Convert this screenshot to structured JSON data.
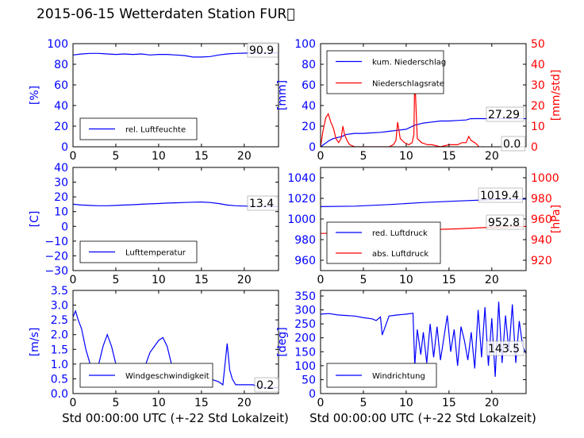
{
  "title": "2015-06-15 Wetterdaten Station FUR\u0000",
  "xlabel": "Std 00:00:00 UTC (+-22 Std Lokalzeit)",
  "colors": {
    "primary": "#0000ff",
    "secondary": "#ff0000",
    "axis": "#000000"
  },
  "chart_data": [
    {
      "type": "line",
      "xlim": [
        0,
        24
      ],
      "ylim": [
        0,
        100
      ],
      "x_ticks": [
        "0",
        "5",
        "10",
        "15",
        "20"
      ],
      "y_ticks": [
        "0",
        "20",
        "40",
        "60",
        "80",
        "100"
      ],
      "ylabel": "[%]",
      "legend_position": "lower-left",
      "series": [
        {
          "name": "rel. Luftfeuchte",
          "color": "#0000ff",
          "x": [
            0,
            1,
            2,
            3,
            4,
            5,
            6,
            7,
            8,
            9,
            10,
            11,
            12,
            13,
            14,
            15,
            16,
            17,
            18,
            19,
            20,
            21,
            22,
            23,
            24
          ],
          "y": [
            89,
            90,
            90.5,
            90.5,
            90,
            89.5,
            90,
            89.5,
            90,
            89,
            89.5,
            89.5,
            89,
            88.5,
            87,
            87,
            87.5,
            89,
            90,
            90.5,
            90.8,
            91,
            90.9,
            91,
            90.9
          ]
        }
      ],
      "annotation": "90.9"
    },
    {
      "type": "line",
      "xlim": [
        0,
        24
      ],
      "ylim": [
        0,
        100
      ],
      "y2lim": [
        0,
        50
      ],
      "x_ticks": [
        "0",
        "5",
        "10",
        "15",
        "20"
      ],
      "y_ticks": [
        "0",
        "20",
        "40",
        "60",
        "80",
        "100"
      ],
      "y2_ticks": [
        "0",
        "10",
        "20",
        "30",
        "40",
        "50"
      ],
      "ylabel": "[mm]",
      "y2label": "[mm/std]",
      "legend_position": "top-left",
      "series": [
        {
          "name": "kum. Niederschlag",
          "color": "#0000ff",
          "axis": "left",
          "x": [
            0,
            0.5,
            1,
            1.5,
            2,
            2.5,
            3,
            4,
            5,
            6,
            7,
            8,
            9,
            10,
            11,
            11.5,
            12,
            13,
            14,
            15,
            16,
            17,
            17.5,
            18,
            19,
            20,
            21,
            22,
            23,
            24
          ],
          "y": [
            0,
            3,
            6,
            8,
            9,
            10,
            12,
            13,
            13,
            13.5,
            14,
            15,
            16,
            17,
            21,
            22,
            23,
            24,
            25,
            25,
            25.5,
            26,
            27.2,
            27.29,
            27.29,
            27.29,
            27.29,
            27.29,
            27.29,
            27.29
          ]
        },
        {
          "name": "Niederschlagsrate",
          "color": "#ff0000",
          "axis": "right",
          "x": [
            0,
            0.3,
            0.6,
            0.9,
            1.2,
            1.5,
            1.8,
            2.1,
            2.4,
            2.6,
            2.8,
            3.1,
            3.4,
            4,
            5,
            6,
            7,
            8,
            8.5,
            8.8,
            9,
            9.3,
            9.8,
            10.3,
            10.7,
            10.9,
            11,
            11.1,
            11.3,
            11.8,
            12.5,
            13,
            14,
            15,
            16,
            16.5,
            17,
            17.3,
            17.6,
            18,
            18.3,
            18.5
          ],
          "y": [
            0,
            8,
            14,
            16,
            12,
            9,
            4,
            2,
            4,
            10,
            6,
            3,
            1,
            0,
            0,
            0,
            0,
            0,
            1,
            3,
            12,
            4,
            2,
            1,
            2,
            6,
            34,
            24,
            4,
            2,
            1,
            1,
            0,
            1,
            1,
            2,
            2,
            5,
            3,
            2,
            1,
            0
          ]
        }
      ],
      "annotations": [
        "27.29",
        "0.0"
      ]
    },
    {
      "type": "line",
      "xlim": [
        0,
        24
      ],
      "ylim": [
        -30,
        40
      ],
      "x_ticks": [
        "0",
        "5",
        "10",
        "15",
        "20"
      ],
      "y_ticks": [
        "−30",
        "−20",
        "−10",
        "0",
        "10",
        "20",
        "30",
        "40"
      ],
      "ylabel": "[C]",
      "legend_position": "lower-left",
      "series": [
        {
          "name": "Lufttemperatur",
          "color": "#0000ff",
          "x": [
            0,
            1,
            2,
            3,
            4,
            5,
            6,
            7,
            8,
            9,
            10,
            11,
            12,
            13,
            14,
            15,
            16,
            17,
            18,
            19,
            20,
            21,
            22,
            23,
            24
          ],
          "y": [
            15,
            14.5,
            14.2,
            14,
            14,
            14.2,
            14.5,
            14.7,
            15,
            15.3,
            15.5,
            15.8,
            16,
            16.2,
            16.4,
            16.5,
            16.2,
            15.5,
            14.5,
            14,
            13.8,
            13.6,
            13.4,
            13.5,
            13.4
          ]
        }
      ],
      "annotation": "13.4"
    },
    {
      "type": "line",
      "xlim": [
        0,
        24
      ],
      "ylim": [
        950,
        1050
      ],
      "y2lim": [
        910,
        1010
      ],
      "x_ticks": [
        "0",
        "5",
        "10",
        "15",
        "20"
      ],
      "y_ticks": [
        "960",
        "980",
        "1000",
        "1020",
        "1040"
      ],
      "y2_ticks": [
        "920",
        "940",
        "960",
        "980",
        "1000"
      ],
      "y2label": "[hPa]",
      "legend_position": "lower-left",
      "series": [
        {
          "name": "red. Luftdruck",
          "color": "#0000ff",
          "axis": "left",
          "x": [
            0,
            4,
            8,
            12,
            16,
            20,
            24
          ],
          "y": [
            1012,
            1012.5,
            1014,
            1016,
            1017.5,
            1018.8,
            1019.4
          ]
        },
        {
          "name": "abs. Luftdruck",
          "color": "#ff0000",
          "axis": "right",
          "x": [
            0,
            4,
            8,
            12,
            16,
            20,
            24
          ],
          "y": [
            946,
            946.5,
            948,
            949.5,
            950.5,
            952,
            952.8
          ]
        }
      ],
      "annotations": [
        "1019.4",
        "952.8"
      ]
    },
    {
      "type": "line",
      "xlim": [
        0,
        24
      ],
      "ylim": [
        0,
        3.5
      ],
      "x_ticks": [
        "0",
        "5",
        "10",
        "15",
        "20"
      ],
      "y_ticks": [
        "0.0",
        "0.5",
        "1.0",
        "1.5",
        "2.0",
        "2.5",
        "3.0",
        "3.5"
      ],
      "ylabel": "[m/s]",
      "legend_position": "lower-left",
      "series": [
        {
          "name": "Windgeschwindigkeit",
          "color": "#0000ff",
          "x": [
            0,
            0.3,
            0.6,
            1,
            1.5,
            2,
            2.5,
            3,
            3.5,
            4,
            4.5,
            5,
            5.5,
            6,
            6.5,
            7,
            7.5,
            8,
            8.5,
            9,
            9.5,
            10,
            10.5,
            11,
            11.5,
            12,
            13,
            14,
            15,
            16,
            17,
            17.5,
            18,
            18.3,
            18.6,
            19,
            20,
            21,
            22,
            23,
            24
          ],
          "y": [
            2.6,
            2.8,
            2.5,
            2.2,
            1.5,
            1.0,
            0.6,
            1.0,
            1.6,
            2.0,
            1.6,
            1.0,
            0.6,
            0.3,
            0.5,
            0.8,
            1.0,
            0.6,
            1.0,
            1.4,
            1.6,
            1.8,
            1.9,
            1.6,
            1.0,
            0.6,
            0.4,
            0.5,
            0.6,
            0.5,
            0.4,
            0.3,
            1.7,
            0.8,
            0.5,
            0.3,
            0.3,
            0.3,
            0.2,
            0.2,
            0.2
          ]
        }
      ],
      "annotation": "0.2"
    },
    {
      "type": "line",
      "xlim": [
        0,
        24
      ],
      "ylim": [
        0,
        370
      ],
      "x_ticks": [
        "0",
        "5",
        "10",
        "15",
        "20"
      ],
      "y_ticks": [
        "0",
        "50",
        "100",
        "150",
        "200",
        "250",
        "300",
        "350"
      ],
      "ylabel": "[deg]",
      "legend_position": "lower-left",
      "series": [
        {
          "name": "Windrichtung",
          "color": "#0000ff",
          "x": [
            0,
            1,
            2,
            3,
            4,
            5,
            6,
            6.5,
            7,
            7.2,
            8,
            9,
            10,
            10.8,
            11,
            11.3,
            11.7,
            12,
            12.4,
            12.8,
            13.2,
            13.6,
            14,
            14.4,
            14.8,
            15.2,
            15.6,
            16,
            16.4,
            16.8,
            17.2,
            17.6,
            18,
            18.4,
            18.8,
            19.2,
            19.6,
            20,
            20.4,
            20.8,
            21.2,
            21.6,
            22,
            22.4,
            22.8,
            23.2,
            23.6,
            24
          ],
          "y": [
            285,
            287,
            282,
            280,
            278,
            272,
            268,
            262,
            275,
            210,
            278,
            282,
            285,
            288,
            100,
            230,
            140,
            220,
            110,
            250,
            130,
            240,
            120,
            200,
            280,
            150,
            230,
            100,
            240,
            190,
            120,
            220,
            90,
            300,
            130,
            310,
            100,
            270,
            60,
            330,
            110,
            280,
            150,
            320,
            110,
            260,
            170,
            143.5
          ]
        }
      ],
      "annotation": "143.5"
    }
  ]
}
